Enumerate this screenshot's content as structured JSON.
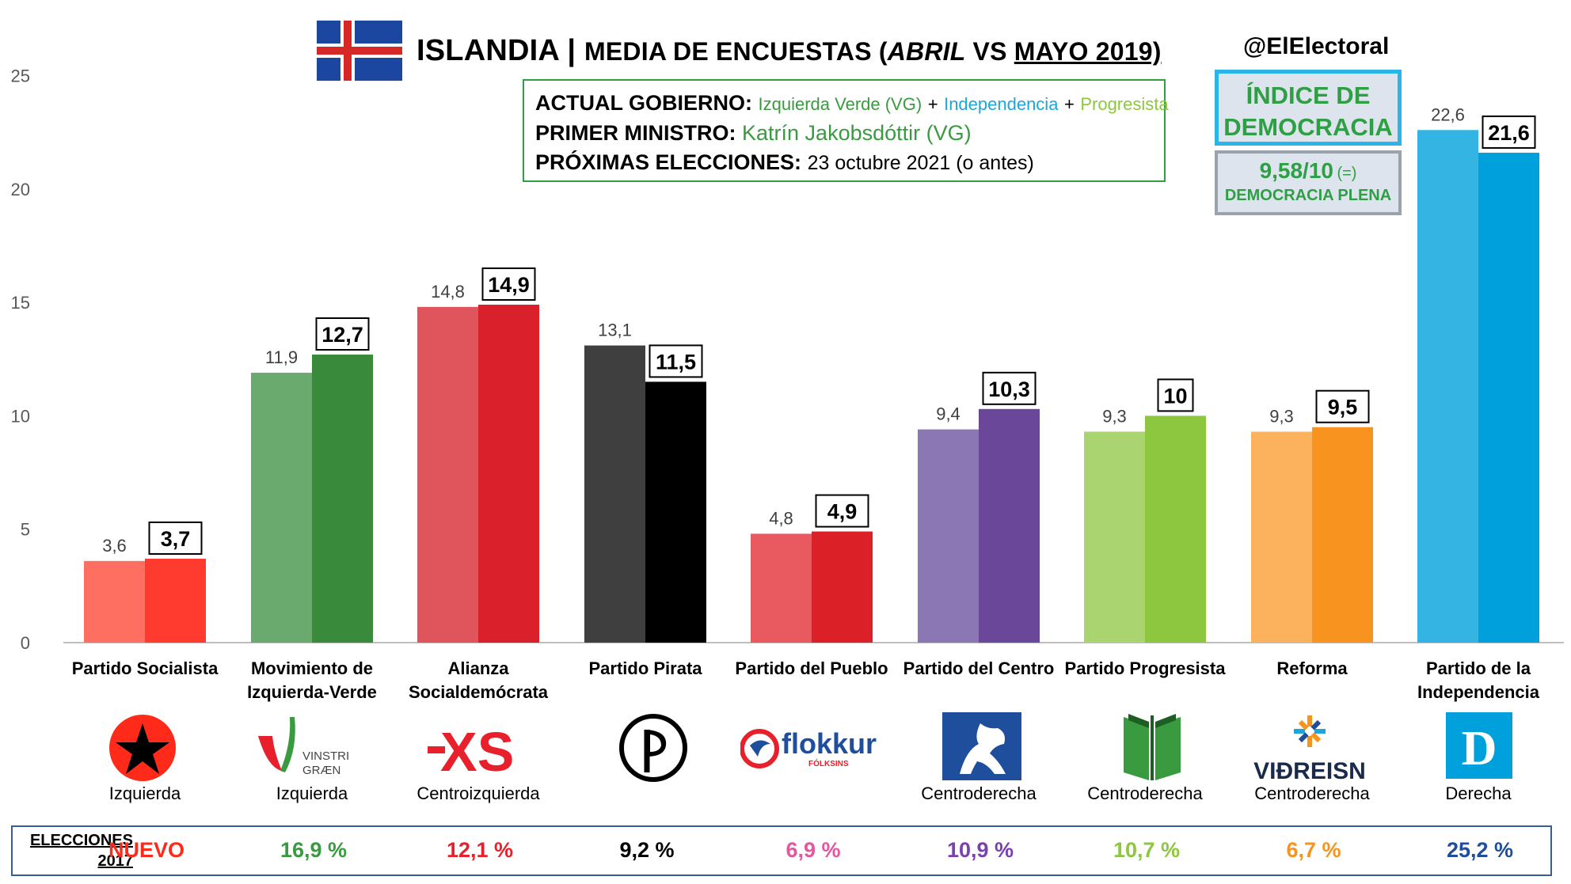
{
  "header": {
    "country": "ISLANDIA",
    "separator": "|",
    "subtitle_prefix": "MEDIA DE ENCUESTAS (",
    "month_a": "ABRIL",
    "vs": " VS ",
    "month_b": "MAYO 2019)",
    "handle": "@ElElectoral"
  },
  "government": {
    "gov_label": "ACTUAL GOBIERNO:",
    "gov_party1": "Izquierda Verde (VG)",
    "plus": "+",
    "gov_party2": "Independencia",
    "gov_party3": "Progresista",
    "pm_label": "PRIMER MINISTRO:",
    "pm_name": "Katrín Jakobsdóttir (VG)",
    "next_label": "PRÓXIMAS ELECCIONES:",
    "next_date": "23 octubre 2021 (o antes)"
  },
  "democracy": {
    "title_line1": "ÍNDICE DE",
    "title_line2": "DEMOCRACIA",
    "score": "9,58/10",
    "change": "(=)",
    "level": "DEMOCRACIA PLENA"
  },
  "chart_data": {
    "type": "bar",
    "ylim": [
      0,
      25
    ],
    "yticks": [
      0,
      5,
      10,
      15,
      20,
      25
    ],
    "categories": [
      "Partido Socialista",
      "Movimiento de Izquierda-Verde",
      "Alianza Socialdemócrata",
      "Partido Pirata",
      "Partido del Pueblo",
      "Partido del Centro",
      "Partido Progresista",
      "Reforma",
      "Partido de la Independencia"
    ],
    "category_lines": [
      [
        "Partido Socialista"
      ],
      [
        "Movimiento de",
        "Izquierda-Verde"
      ],
      [
        "Alianza",
        "Socialdemócrata"
      ],
      [
        "Partido Pirata"
      ],
      [
        "Partido del Pueblo"
      ],
      [
        "Partido del Centro"
      ],
      [
        "Partido Progresista"
      ],
      [
        "Reforma"
      ],
      [
        "Partido de la",
        "Independencia"
      ]
    ],
    "series": [
      {
        "values": [
          3.6,
          11.9,
          14.8,
          13.1,
          4.8,
          9.4,
          9.3,
          9.3,
          22.6
        ],
        "labels": [
          "3,6",
          "11,9",
          "14,8",
          "13,1",
          "4,8",
          "9,4",
          "9,3",
          "9,3",
          "22,6"
        ]
      },
      {
        "values": [
          3.7,
          12.7,
          14.9,
          11.5,
          4.9,
          10.3,
          10,
          9.5,
          21.6
        ],
        "labels": [
          "3,7",
          "12,7",
          "14,9",
          "11,5",
          "4,9",
          "10,3",
          "10",
          "9,5",
          "21,6"
        ]
      }
    ],
    "colors_light": [
      "#ff6f61",
      "#6aaa6e",
      "#e0545b",
      "#3f3f3f",
      "#e85a5f",
      "#8a77b3",
      "#a9d46f",
      "#fcb25c",
      "#33b4e2"
    ],
    "colors_dark": [
      "#ff3b30",
      "#3a8a3c",
      "#d9202b",
      "#000000",
      "#db2027",
      "#6a4798",
      "#8dc63f",
      "#f7931e",
      "#00a0dc"
    ],
    "legend": "none",
    "grid": false
  },
  "ideology": [
    "Izquierda",
    "Izquierda",
    "Centroizquierda",
    "",
    "",
    "Centroderecha",
    "Centroderecha",
    "Centroderecha",
    "Derecha"
  ],
  "logos": {
    "names": [
      "socialist-star-icon",
      "vinstri-graen-logo",
      "xs-logo",
      "pirate-flag-icon",
      "flokkur-folksins-logo",
      "centre-horse-logo",
      "progressive-book-logo",
      "vidreisn-logo",
      "d-logo"
    ],
    "vg_text1": "VINSTRI",
    "vg_text2": "GRÆN",
    "xs_text": "XS",
    "flokkur_text": "flokkur",
    "flokkur_sub": "FÓLKSINS",
    "vidreisn_text": "VIÐREISN",
    "d_text": "D"
  },
  "elections": {
    "label_line1": "ELECCIONES",
    "label_line2": "2017",
    "values": [
      "NUEVO",
      "16,9 %",
      "12,1 %",
      "9,2 %",
      "6,9 %",
      "10,9 %",
      "10,7 %",
      "6,7 %",
      "25,2 %"
    ],
    "colors": [
      "#ff2a1a",
      "#3a9a3f",
      "#e8202b",
      "#000000",
      "#e6569e",
      "#7a3fb0",
      "#8dc63f",
      "#f7931e",
      "#1f4e9c"
    ]
  }
}
